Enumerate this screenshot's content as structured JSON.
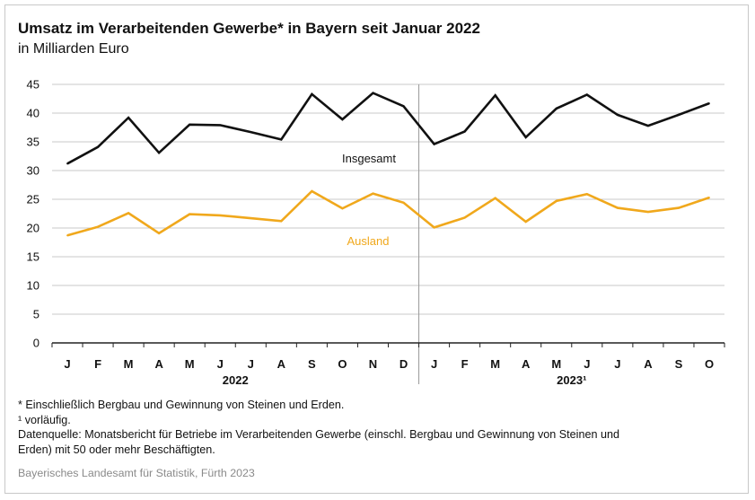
{
  "title": "Umsatz im Verarbeitenden Gewerbe* in Bayern seit Januar 2022",
  "subtitle": "in Milliarden Euro",
  "footnotes": {
    "asterisk": "* Einschließlich Bergbau und Gewinnung von Steinen und Erden.",
    "one": "¹ vorläufig.",
    "source_line1": "Datenquelle: Monatsbericht für Betriebe im Verarbeitenden Gewerbe (einschl. Bergbau und Gewinnung von Steinen und",
    "source_line2": "Erden) mit 50 oder mehr Beschäftigten."
  },
  "credit": "Bayerisches Landesamt für Statistik, Fürth 2023",
  "colors": {
    "insgesamt": "#111111",
    "ausland": "#f0a81c",
    "grid": "#c8c8c8",
    "axis": "#222222",
    "divider": "#9a9a9a"
  },
  "chart_data": {
    "type": "line",
    "categories": [
      "J",
      "F",
      "M",
      "A",
      "M",
      "J",
      "J",
      "A",
      "S",
      "O",
      "N",
      "D",
      "J",
      "F",
      "M",
      "A",
      "M",
      "J",
      "J",
      "A",
      "S",
      "O"
    ],
    "year_labels": [
      {
        "label": "2022",
        "from": 0,
        "to": 11
      },
      {
        "label": "2023¹",
        "from": 12,
        "to": 21
      }
    ],
    "yticks": [
      "0",
      "5",
      "10",
      "15",
      "20",
      "25",
      "30",
      "35",
      "40",
      "45"
    ],
    "ylim": [
      0,
      45
    ],
    "grid": true,
    "series": [
      {
        "name": "Insgesamt",
        "color": "#111111",
        "values": [
          31.2,
          34.1,
          39.2,
          33.1,
          38.0,
          37.9,
          36.7,
          35.4,
          43.3,
          38.9,
          43.5,
          41.2,
          34.6,
          36.8,
          43.1,
          35.8,
          40.8,
          43.2,
          39.7,
          37.8,
          39.7,
          41.7
        ]
      },
      {
        "name": "Ausland",
        "color": "#f0a81c",
        "values": [
          18.7,
          20.2,
          22.6,
          19.1,
          22.4,
          22.2,
          21.7,
          21.2,
          26.4,
          23.4,
          26.0,
          24.4,
          20.1,
          21.8,
          25.2,
          21.1,
          24.7,
          25.9,
          23.5,
          22.8,
          23.5,
          25.3
        ]
      }
    ]
  }
}
